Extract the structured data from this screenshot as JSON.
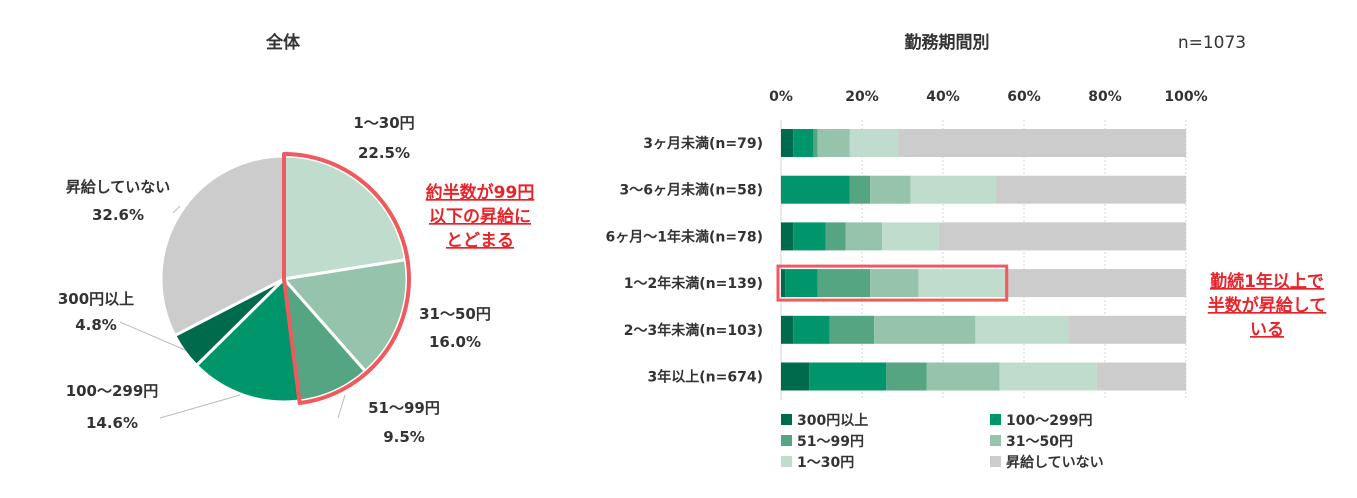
{
  "colors": {
    "c300": "#006a4d",
    "c100": "#00956a",
    "c51": "#55a582",
    "c31": "#96c3ab",
    "c1": "#c0dccc",
    "cnone": "#cccccc",
    "highlight": "#f05a5f",
    "annotation": "#e8242b"
  },
  "chart_data": [
    {
      "type": "pie",
      "title": "全体",
      "slices": [
        {
          "key": "c1",
          "label": "1～30円",
          "value": 22.5,
          "display": "22.5%"
        },
        {
          "key": "c31",
          "label": "31～50円",
          "value": 16.0,
          "display": "16.0%"
        },
        {
          "key": "c51",
          "label": "51～99円",
          "value": 9.5,
          "display": "9.5%"
        },
        {
          "key": "c100",
          "label": "100～299円",
          "value": 14.6,
          "display": "14.6%"
        },
        {
          "key": "c300",
          "label": "300円以上",
          "value": 4.8,
          "display": "4.8%"
        },
        {
          "key": "cnone",
          "label": "昇給していない",
          "value": 32.6,
          "display": "32.6%"
        }
      ],
      "annotation": [
        "約半数が99円",
        "以下の昇給に",
        "とどまる"
      ]
    },
    {
      "type": "bar",
      "stacked": true,
      "orientation": "horizontal",
      "title": "勤務期間別",
      "note": "n=1073",
      "xlim": [
        0,
        100
      ],
      "xticks": [
        "0%",
        "20%",
        "40%",
        "60%",
        "80%",
        "100%"
      ],
      "categories": [
        "3ヶ月未満(n=79)",
        "3～6ヶ月未満(n=58)",
        "6ヶ月～1年未満(n=78)",
        "1～2年未満(n=139)",
        "2～3年未満(n=103)",
        "3年以上(n=674)"
      ],
      "series": [
        {
          "key": "c300",
          "name": "300円以上",
          "values": [
            3,
            0,
            3,
            1,
            3,
            7
          ]
        },
        {
          "key": "c100",
          "name": "100～299円",
          "values": [
            5,
            17,
            8,
            8,
            9,
            19
          ]
        },
        {
          "key": "c51",
          "name": "51～99円",
          "values": [
            1,
            5,
            5,
            13,
            11,
            10
          ]
        },
        {
          "key": "c31",
          "name": "31～50円",
          "values": [
            8,
            10,
            9,
            12,
            25,
            18
          ]
        },
        {
          "key": "c1",
          "name": "1～30円",
          "values": [
            12,
            21,
            14,
            21,
            23,
            24
          ]
        },
        {
          "key": "cnone",
          "name": "昇給していない",
          "values": [
            71,
            47,
            61,
            45,
            29,
            22
          ]
        }
      ],
      "highlight_category": "1～2年未満(n=139)",
      "annotation": [
        "勤続1年以上で",
        "半数が昇給して",
        "いる"
      ]
    }
  ]
}
